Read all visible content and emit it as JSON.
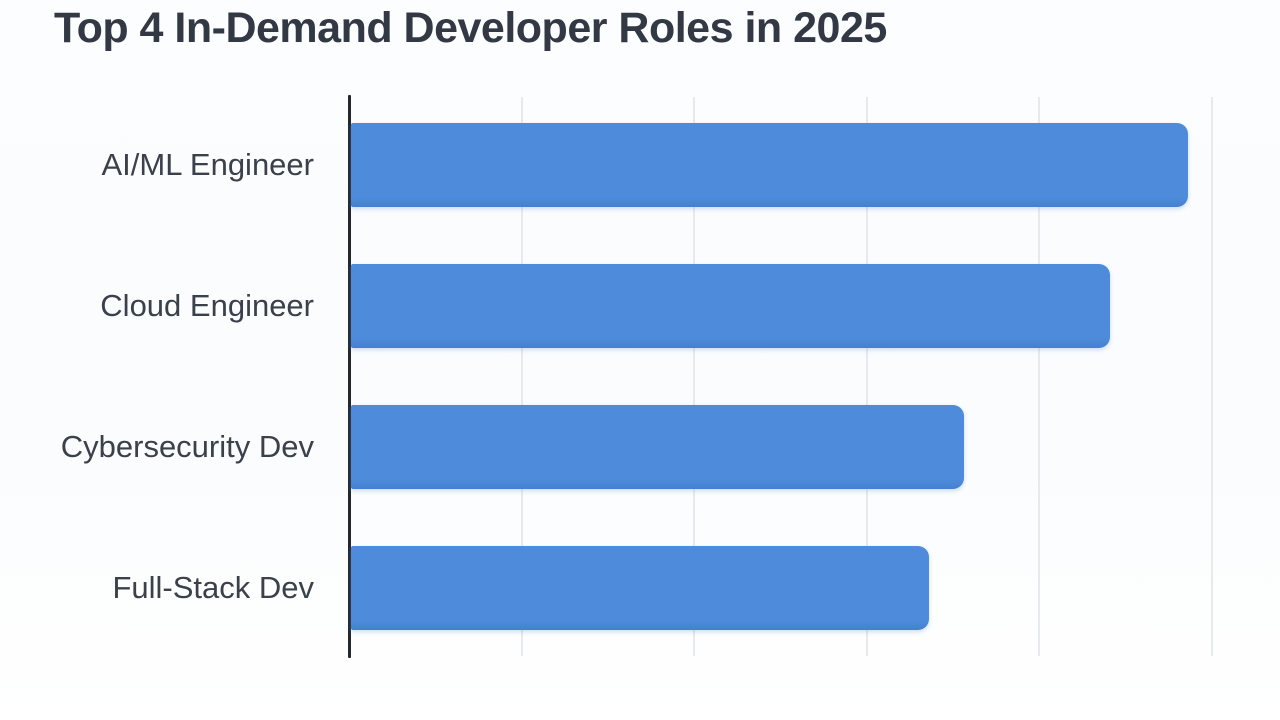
{
  "title": "Top 4 In-Demand Developer Roles in 2025",
  "colors": {
    "background": "#fbfcfe",
    "bar": "#4e8cdb",
    "axis": "#23272e",
    "gridline": "#e6e9ee",
    "title_text": "#323945",
    "label_text": "#3a414b"
  },
  "chart_data": {
    "type": "bar",
    "orientation": "horizontal",
    "title": "Top 4 In-Demand Developer Roles in 2025",
    "categories": [
      "AI/ML Engineer",
      "Cloud Engineer",
      "Cybersecurity Dev",
      "Full-Stack Dev"
    ],
    "values": [
      97,
      88,
      71,
      67
    ],
    "xlabel": "",
    "ylabel": "",
    "xlim": [
      0,
      108
    ],
    "gridline_values": [
      20,
      40,
      60,
      80,
      100
    ],
    "grid": true,
    "legend": false,
    "tick_labels_visible": false,
    "value_labels_visible": false
  }
}
